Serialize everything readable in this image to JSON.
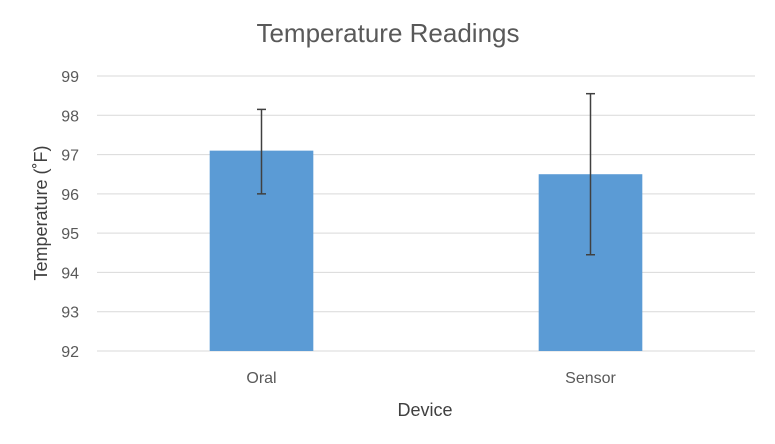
{
  "chart_data": {
    "type": "bar",
    "title": "Temperature Readings",
    "xlabel": "Device",
    "ylabel": "Temperature (˚F)",
    "categories": [
      "Oral",
      "Sensor"
    ],
    "values": [
      97.1,
      96.5
    ],
    "error_bars": [
      {
        "low": 96.0,
        "high": 98.15
      },
      {
        "low": 94.45,
        "high": 98.55
      }
    ],
    "ylim": [
      92,
      99
    ],
    "yticks": [
      "92",
      "93",
      "94",
      "95",
      "96",
      "97",
      "98",
      "99"
    ],
    "grid": true,
    "legend": "none",
    "bar_color": "#5b9bd5",
    "error_bar_color": "#404040",
    "gridline_color": "#d9d9d9"
  }
}
